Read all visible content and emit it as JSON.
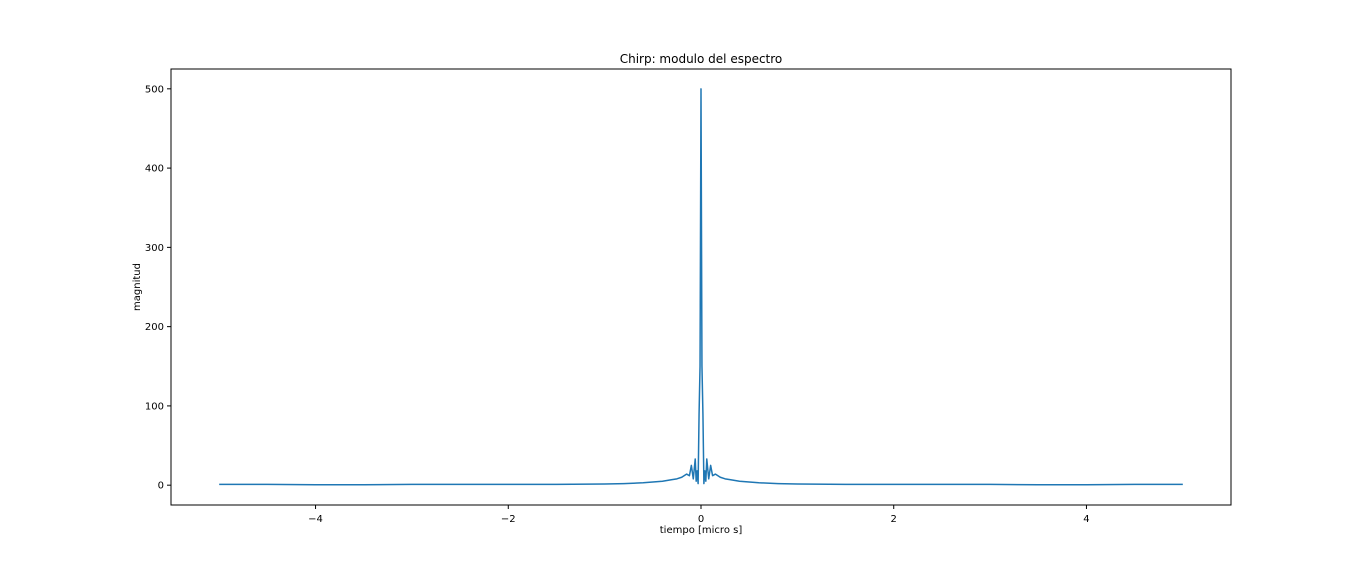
{
  "chart_data": {
    "type": "line",
    "title": "Chirp: modulo del espectro",
    "xlabel": "tiempo [micro s]",
    "ylabel": "magnitud",
    "xlim": [
      -5.5,
      5.5
    ],
    "ylim": [
      -25,
      525
    ],
    "xticks": [
      -4,
      -2,
      0,
      2,
      4
    ],
    "xtick_labels": [
      "−4",
      "−2",
      "0",
      "2",
      "4"
    ],
    "yticks": [
      0,
      100,
      200,
      300,
      400,
      500
    ],
    "ytick_labels": [
      "0",
      "100",
      "200",
      "300",
      "400",
      "500"
    ],
    "grid": false,
    "series": [
      {
        "color": "#1f77b4",
        "x": [
          -5.0,
          -4.5,
          -4.0,
          -3.5,
          -3.0,
          -2.5,
          -2.0,
          -1.5,
          -1.0,
          -0.8,
          -0.6,
          -0.5,
          -0.4,
          -0.3,
          -0.25,
          -0.2,
          -0.15,
          -0.12,
          -0.1,
          -0.08,
          -0.06,
          -0.05,
          -0.04,
          -0.03,
          -0.02,
          -0.01,
          0.0,
          0.01,
          0.02,
          0.03,
          0.04,
          0.05,
          0.06,
          0.08,
          0.1,
          0.12,
          0.15,
          0.2,
          0.25,
          0.3,
          0.4,
          0.5,
          0.6,
          0.8,
          1.0,
          1.5,
          2.0,
          2.5,
          3.0,
          3.5,
          4.0,
          4.5,
          5.0
        ],
        "y": [
          1,
          1,
          0.5,
          0.5,
          1,
          1,
          1,
          1,
          1.5,
          2,
          3,
          4,
          5,
          7,
          8,
          10,
          14,
          12,
          25,
          8,
          33,
          5,
          18,
          2,
          90,
          150,
          500,
          150,
          90,
          2,
          18,
          5,
          33,
          8,
          25,
          12,
          14,
          10,
          8,
          7,
          5,
          4,
          3,
          2,
          1.5,
          1,
          1,
          1,
          1,
          0.5,
          0.5,
          1,
          1
        ]
      }
    ]
  }
}
